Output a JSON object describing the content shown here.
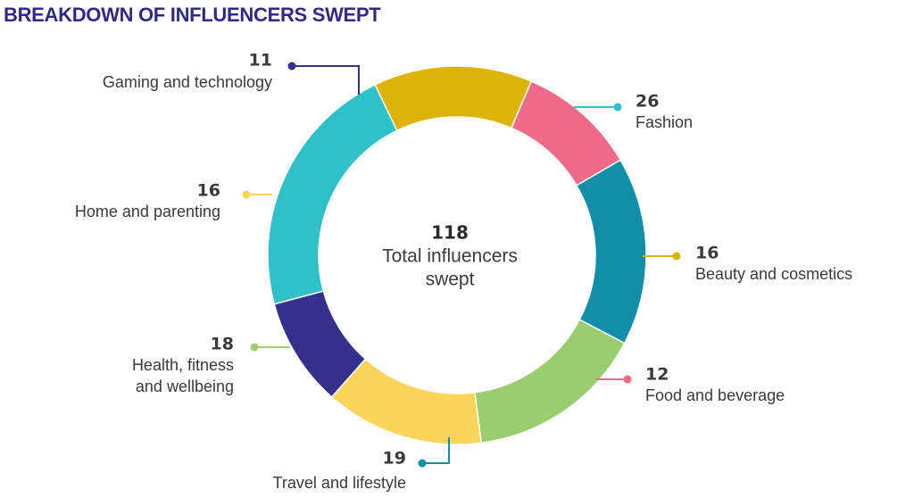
{
  "chart_data": {
    "type": "pie",
    "variant": "donut",
    "title": "BREAKDOWN OF INFLUENCERS SWEPT",
    "center": {
      "value": "118",
      "label_lines": [
        "Total influencers",
        "swept"
      ]
    },
    "slices": [
      {
        "label": "Fashion",
        "value": 26,
        "color": "#2ec1c9"
      },
      {
        "label": "Beauty and cosmetics",
        "value": 16,
        "color": "#dcb307"
      },
      {
        "label": "Food and beverage",
        "value": 12,
        "color": "#ef6a88"
      },
      {
        "label": "Travel and lifestyle",
        "value": 19,
        "color": "#138ea8"
      },
      {
        "label": "Health, fitness and wellbeing",
        "label_lines": [
          "Health, fitness",
          "and wellbeing"
        ],
        "value": 18,
        "color": "#9acd6e"
      },
      {
        "label": "Home and parenting",
        "value": 16,
        "color": "#fcd45a"
      },
      {
        "label": "Gaming and technology",
        "value": 11,
        "color": "#33308e"
      }
    ]
  }
}
